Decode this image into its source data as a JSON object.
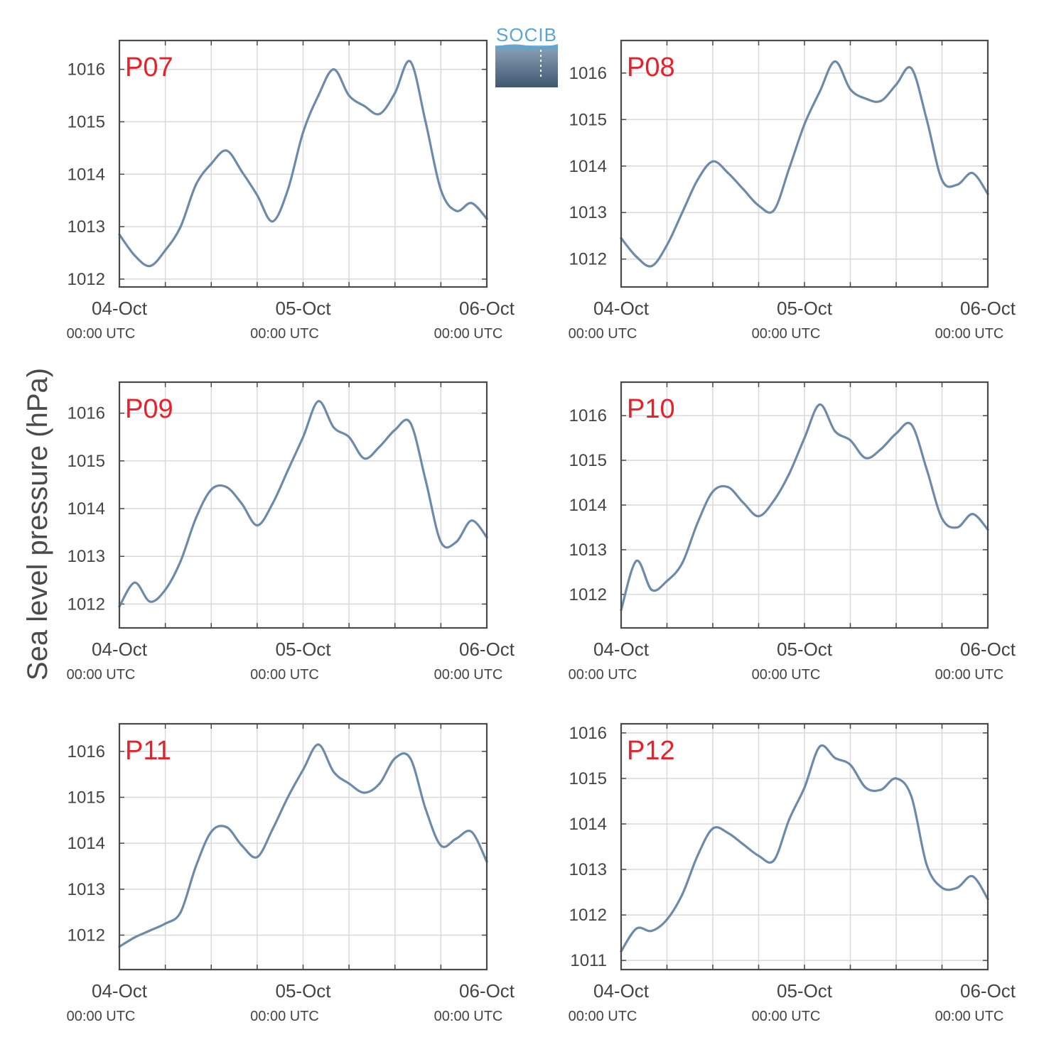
{
  "figure": {
    "ylabel": "Sea level pressure (hPa)",
    "logo_text": "SOCIB",
    "colors": {
      "line": "#6c8aa9",
      "station_label": "#e8202a",
      "axis": "#4a4a4a",
      "grid": "#d9d9d9",
      "tick_text": "#444444",
      "logo_text": "#5aa6cf"
    }
  },
  "chart_data": [
    {
      "type": "line",
      "station": "P07",
      "ylim": [
        1011.85,
        1016.55
      ],
      "yticks": [
        1012,
        1013,
        1014,
        1015,
        1016
      ],
      "xticks": [
        {
          "day": 0,
          "date": "04-Oct",
          "time": "00:00 UTC"
        },
        {
          "day": 1,
          "date": "05-Oct",
          "time": "00:00 UTC"
        },
        {
          "day": 2,
          "date": "06-Oct",
          "time": "00:00 UTC"
        }
      ],
      "x_hours": [
        0,
        2,
        4,
        6,
        8,
        10,
        12,
        14,
        16,
        18,
        20,
        22,
        24,
        26,
        28,
        30,
        32,
        34,
        36,
        38,
        40,
        42,
        44,
        46,
        48
      ],
      "values": [
        1012.85,
        1012.45,
        1012.25,
        1012.55,
        1013.0,
        1013.8,
        1014.2,
        1014.45,
        1014.05,
        1013.6,
        1013.1,
        1013.7,
        1014.8,
        1015.5,
        1016.0,
        1015.5,
        1015.3,
        1015.15,
        1015.55,
        1016.15,
        1015.0,
        1013.7,
        1013.3,
        1013.45,
        1013.15
      ]
    },
    {
      "type": "line",
      "station": "P08",
      "ylim": [
        1011.4,
        1016.7
      ],
      "yticks": [
        1012,
        1013,
        1014,
        1015,
        1016
      ],
      "xticks": [
        {
          "day": 0,
          "date": "04-Oct",
          "time": "00:00 UTC"
        },
        {
          "day": 1,
          "date": "05-Oct",
          "time": "00:00 UTC"
        },
        {
          "day": 2,
          "date": "06-Oct",
          "time": "00:00 UTC"
        }
      ],
      "x_hours": [
        0,
        2,
        4,
        6,
        8,
        10,
        12,
        14,
        16,
        18,
        20,
        22,
        24,
        26,
        28,
        30,
        32,
        34,
        36,
        38,
        40,
        42,
        44,
        46,
        48
      ],
      "values": [
        1012.45,
        1012.05,
        1011.85,
        1012.3,
        1013.0,
        1013.7,
        1014.1,
        1013.85,
        1013.5,
        1013.15,
        1013.05,
        1013.95,
        1014.9,
        1015.6,
        1016.25,
        1015.65,
        1015.45,
        1015.4,
        1015.75,
        1016.1,
        1015.0,
        1013.7,
        1013.6,
        1013.85,
        1013.4
      ]
    },
    {
      "type": "line",
      "station": "P09",
      "ylim": [
        1011.5,
        1016.65
      ],
      "yticks": [
        1012,
        1013,
        1014,
        1015,
        1016
      ],
      "xticks": [
        {
          "day": 0,
          "date": "04-Oct",
          "time": "00:00 UTC"
        },
        {
          "day": 1,
          "date": "05-Oct",
          "time": "00:00 UTC"
        },
        {
          "day": 2,
          "date": "06-Oct",
          "time": "00:00 UTC"
        }
      ],
      "x_hours": [
        0,
        2,
        4,
        6,
        8,
        10,
        12,
        14,
        16,
        18,
        20,
        22,
        24,
        26,
        28,
        30,
        32,
        34,
        36,
        38,
        40,
        42,
        44,
        46,
        48
      ],
      "values": [
        1011.95,
        1012.45,
        1012.05,
        1012.3,
        1012.9,
        1013.8,
        1014.4,
        1014.45,
        1014.1,
        1013.65,
        1014.1,
        1014.8,
        1015.5,
        1016.25,
        1015.7,
        1015.5,
        1015.05,
        1015.3,
        1015.65,
        1015.8,
        1014.6,
        1013.3,
        1013.3,
        1013.75,
        1013.4
      ]
    },
    {
      "type": "line",
      "station": "P10",
      "ylim": [
        1011.25,
        1016.75
      ],
      "yticks": [
        1012,
        1013,
        1014,
        1015,
        1016
      ],
      "xticks": [
        {
          "day": 0,
          "date": "04-Oct",
          "time": "00:00 UTC"
        },
        {
          "day": 1,
          "date": "05-Oct",
          "time": "00:00 UTC"
        },
        {
          "day": 2,
          "date": "06-Oct",
          "time": "00:00 UTC"
        }
      ],
      "x_hours": [
        0,
        2,
        4,
        6,
        8,
        10,
        12,
        14,
        16,
        18,
        20,
        22,
        24,
        26,
        28,
        30,
        32,
        34,
        36,
        38,
        40,
        42,
        44,
        46,
        48
      ],
      "values": [
        1011.65,
        1012.75,
        1012.1,
        1012.3,
        1012.7,
        1013.6,
        1014.3,
        1014.4,
        1014.05,
        1013.75,
        1014.1,
        1014.7,
        1015.5,
        1016.25,
        1015.65,
        1015.45,
        1015.05,
        1015.25,
        1015.6,
        1015.8,
        1014.8,
        1013.7,
        1013.5,
        1013.8,
        1013.45
      ]
    },
    {
      "type": "line",
      "station": "P11",
      "ylim": [
        1011.25,
        1016.6
      ],
      "yticks": [
        1012,
        1013,
        1014,
        1015,
        1016
      ],
      "xticks": [
        {
          "day": 0,
          "date": "04-Oct",
          "time": "00:00 UTC"
        },
        {
          "day": 1,
          "date": "05-Oct",
          "time": "00:00 UTC"
        },
        {
          "day": 2,
          "date": "06-Oct",
          "time": "00:00 UTC"
        }
      ],
      "x_hours": [
        0,
        2,
        4,
        6,
        8,
        10,
        12,
        14,
        16,
        18,
        20,
        22,
        24,
        26,
        28,
        30,
        32,
        34,
        36,
        38,
        40,
        42,
        44,
        46,
        48
      ],
      "values": [
        1011.75,
        1011.95,
        1012.1,
        1012.25,
        1012.5,
        1013.5,
        1014.25,
        1014.35,
        1013.95,
        1013.7,
        1014.3,
        1015.0,
        1015.6,
        1016.15,
        1015.55,
        1015.3,
        1015.1,
        1015.3,
        1015.85,
        1015.85,
        1014.75,
        1013.95,
        1014.1,
        1014.25,
        1013.6
      ]
    },
    {
      "type": "line",
      "station": "P12",
      "ylim": [
        1010.8,
        1016.2
      ],
      "yticks": [
        1011,
        1012,
        1013,
        1014,
        1015,
        1016
      ],
      "xticks": [
        {
          "day": 0,
          "date": "04-Oct",
          "time": "00:00 UTC"
        },
        {
          "day": 1,
          "date": "05-Oct",
          "time": "00:00 UTC"
        },
        {
          "day": 2,
          "date": "06-Oct",
          "time": "00:00 UTC"
        }
      ],
      "x_hours": [
        0,
        2,
        4,
        6,
        8,
        10,
        12,
        14,
        16,
        18,
        20,
        22,
        24,
        26,
        28,
        30,
        32,
        34,
        36,
        38,
        40,
        42,
        44,
        46,
        48
      ],
      "values": [
        1011.2,
        1011.7,
        1011.65,
        1011.9,
        1012.45,
        1013.3,
        1013.9,
        1013.8,
        1013.55,
        1013.3,
        1013.2,
        1014.1,
        1014.8,
        1015.7,
        1015.45,
        1015.3,
        1014.8,
        1014.75,
        1015.0,
        1014.6,
        1013.1,
        1012.6,
        1012.6,
        1012.85,
        1012.35
      ]
    }
  ]
}
